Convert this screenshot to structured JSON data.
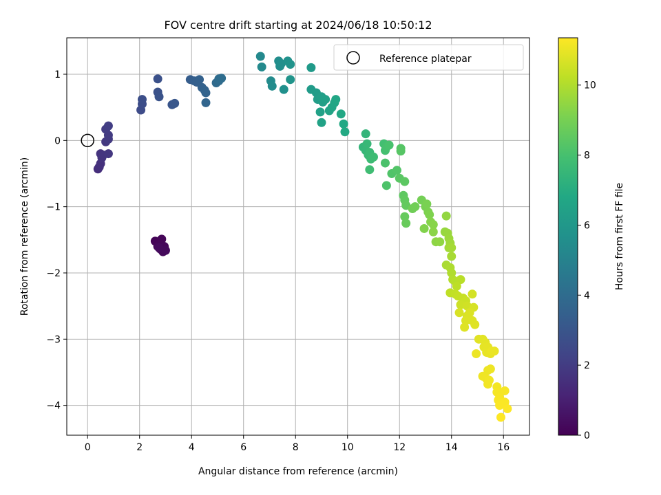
{
  "chart_data": {
    "type": "scatter",
    "title": "FOV centre drift starting at 2024/06/18 10:50:12",
    "xlabel": "Angular distance from reference (arcmin)",
    "ylabel": "Rotation from reference (arcmin)",
    "xlim": [
      -0.8,
      17.0
    ],
    "ylim": [
      -4.45,
      1.55
    ],
    "xticks": [
      0,
      2,
      4,
      6,
      8,
      10,
      12,
      14,
      16
    ],
    "yticks": [
      -4,
      -3,
      -2,
      -1,
      0,
      1
    ],
    "grid": true,
    "legend": {
      "position": "top-right",
      "entries": [
        "Reference platepar"
      ]
    },
    "reference_point": {
      "x": 0,
      "y": 0
    },
    "colorbar": {
      "label": "Hours from first FF file",
      "colormap": "viridis",
      "range": [
        0,
        11.35
      ],
      "ticks": [
        0,
        2,
        4,
        6,
        8,
        10
      ]
    },
    "points": [
      {
        "x": 2.6,
        "y": -1.52,
        "c": 0.1
      },
      {
        "x": 2.75,
        "y": -1.56,
        "c": 0.12
      },
      {
        "x": 2.85,
        "y": -1.49,
        "c": 0.15
      },
      {
        "x": 2.7,
        "y": -1.6,
        "c": 0.18
      },
      {
        "x": 2.95,
        "y": -1.6,
        "c": 0.2
      },
      {
        "x": 2.8,
        "y": -1.64,
        "c": 0.22
      },
      {
        "x": 2.9,
        "y": -1.68,
        "c": 0.25
      },
      {
        "x": 3.0,
        "y": -1.66,
        "c": 0.28
      },
      {
        "x": 2.75,
        "y": -1.62,
        "c": 0.3
      },
      {
        "x": 0.4,
        "y": -0.43,
        "c": 1.5
      },
      {
        "x": 0.45,
        "y": -0.4,
        "c": 1.55
      },
      {
        "x": 0.5,
        "y": -0.35,
        "c": 1.6
      },
      {
        "x": 0.5,
        "y": -0.2,
        "c": 1.65
      },
      {
        "x": 0.55,
        "y": -0.26,
        "c": 1.7
      },
      {
        "x": 0.6,
        "y": -0.22,
        "c": 1.75
      },
      {
        "x": 0.8,
        "y": -0.2,
        "c": 1.8
      },
      {
        "x": 0.7,
        "y": -0.02,
        "c": 1.85
      },
      {
        "x": 0.8,
        "y": 0.02,
        "c": 1.9
      },
      {
        "x": 0.8,
        "y": 0.08,
        "c": 1.95
      },
      {
        "x": 0.7,
        "y": 0.17,
        "c": 2.0
      },
      {
        "x": 0.8,
        "y": 0.22,
        "c": 2.05
      },
      {
        "x": 2.05,
        "y": 0.46,
        "c": 2.6
      },
      {
        "x": 2.1,
        "y": 0.55,
        "c": 2.65
      },
      {
        "x": 2.1,
        "y": 0.62,
        "c": 2.7
      },
      {
        "x": 2.7,
        "y": 0.93,
        "c": 2.8
      },
      {
        "x": 2.7,
        "y": 0.73,
        "c": 2.85
      },
      {
        "x": 2.75,
        "y": 0.66,
        "c": 2.9
      },
      {
        "x": 3.25,
        "y": 0.54,
        "c": 3.0
      },
      {
        "x": 3.35,
        "y": 0.56,
        "c": 3.05
      },
      {
        "x": 3.95,
        "y": 0.92,
        "c": 3.3
      },
      {
        "x": 4.1,
        "y": 0.9,
        "c": 3.4
      },
      {
        "x": 4.2,
        "y": 0.88,
        "c": 3.45
      },
      {
        "x": 4.3,
        "y": 0.92,
        "c": 3.5
      },
      {
        "x": 4.4,
        "y": 0.8,
        "c": 3.55
      },
      {
        "x": 4.5,
        "y": 0.76,
        "c": 3.6
      },
      {
        "x": 4.55,
        "y": 0.72,
        "c": 3.65
      },
      {
        "x": 4.55,
        "y": 0.57,
        "c": 3.7
      },
      {
        "x": 4.95,
        "y": 0.87,
        "c": 3.9
      },
      {
        "x": 5.05,
        "y": 0.9,
        "c": 3.95
      },
      {
        "x": 5.05,
        "y": 0.93,
        "c": 4.0
      },
      {
        "x": 5.15,
        "y": 0.94,
        "c": 4.05
      },
      {
        "x": 6.65,
        "y": 1.27,
        "c": 5.3
      },
      {
        "x": 6.7,
        "y": 1.11,
        "c": 5.35
      },
      {
        "x": 7.05,
        "y": 0.9,
        "c": 5.4
      },
      {
        "x": 7.1,
        "y": 0.82,
        "c": 5.45
      },
      {
        "x": 7.35,
        "y": 1.2,
        "c": 5.5
      },
      {
        "x": 7.4,
        "y": 1.12,
        "c": 5.55
      },
      {
        "x": 7.45,
        "y": 1.16,
        "c": 5.6
      },
      {
        "x": 7.55,
        "y": 0.77,
        "c": 5.65
      },
      {
        "x": 7.7,
        "y": 1.2,
        "c": 5.7
      },
      {
        "x": 7.8,
        "y": 1.15,
        "c": 5.75
      },
      {
        "x": 7.8,
        "y": 0.92,
        "c": 5.8
      },
      {
        "x": 8.6,
        "y": 1.1,
        "c": 6.1
      },
      {
        "x": 8.6,
        "y": 0.77,
        "c": 6.15
      },
      {
        "x": 8.8,
        "y": 0.72,
        "c": 6.2
      },
      {
        "x": 8.85,
        "y": 0.62,
        "c": 6.25
      },
      {
        "x": 9.0,
        "y": 0.66,
        "c": 6.3
      },
      {
        "x": 9.05,
        "y": 0.58,
        "c": 6.35
      },
      {
        "x": 9.15,
        "y": 0.62,
        "c": 6.4
      },
      {
        "x": 8.95,
        "y": 0.43,
        "c": 6.45
      },
      {
        "x": 9.0,
        "y": 0.27,
        "c": 6.5
      },
      {
        "x": 9.3,
        "y": 0.45,
        "c": 6.55
      },
      {
        "x": 9.4,
        "y": 0.5,
        "c": 6.6
      },
      {
        "x": 9.5,
        "y": 0.57,
        "c": 6.65
      },
      {
        "x": 9.55,
        "y": 0.62,
        "c": 6.7
      },
      {
        "x": 9.75,
        "y": 0.4,
        "c": 6.75
      },
      {
        "x": 9.85,
        "y": 0.25,
        "c": 6.8
      },
      {
        "x": 9.9,
        "y": 0.13,
        "c": 6.85
      },
      {
        "x": 10.7,
        "y": 0.1,
        "c": 7.4
      },
      {
        "x": 10.6,
        "y": -0.1,
        "c": 7.45
      },
      {
        "x": 10.7,
        "y": -0.15,
        "c": 7.5
      },
      {
        "x": 10.75,
        "y": -0.05,
        "c": 7.55
      },
      {
        "x": 10.8,
        "y": -0.22,
        "c": 7.6
      },
      {
        "x": 10.85,
        "y": -0.18,
        "c": 7.65
      },
      {
        "x": 10.9,
        "y": -0.28,
        "c": 7.7
      },
      {
        "x": 11.0,
        "y": -0.25,
        "c": 7.75
      },
      {
        "x": 10.85,
        "y": -0.44,
        "c": 7.8
      },
      {
        "x": 11.4,
        "y": -0.05,
        "c": 7.9
      },
      {
        "x": 11.45,
        "y": -0.15,
        "c": 7.95
      },
      {
        "x": 11.5,
        "y": -0.1,
        "c": 8.0
      },
      {
        "x": 11.6,
        "y": -0.07,
        "c": 8.05
      },
      {
        "x": 11.45,
        "y": -0.34,
        "c": 8.1
      },
      {
        "x": 11.5,
        "y": -0.68,
        "c": 8.15
      },
      {
        "x": 11.7,
        "y": -0.5,
        "c": 8.2
      },
      {
        "x": 11.9,
        "y": -0.45,
        "c": 8.25
      },
      {
        "x": 12.05,
        "y": -0.12,
        "c": 8.3
      },
      {
        "x": 12.05,
        "y": -0.16,
        "c": 8.35
      },
      {
        "x": 12.0,
        "y": -0.57,
        "c": 8.4
      },
      {
        "x": 12.2,
        "y": -0.62,
        "c": 8.45
      },
      {
        "x": 12.15,
        "y": -0.83,
        "c": 8.5
      },
      {
        "x": 12.2,
        "y": -0.9,
        "c": 8.55
      },
      {
        "x": 12.25,
        "y": -0.98,
        "c": 8.6
      },
      {
        "x": 12.2,
        "y": -1.15,
        "c": 8.65
      },
      {
        "x": 12.25,
        "y": -1.25,
        "c": 8.7
      },
      {
        "x": 12.5,
        "y": -1.03,
        "c": 8.85
      },
      {
        "x": 12.6,
        "y": -1.0,
        "c": 8.9
      },
      {
        "x": 12.85,
        "y": -0.9,
        "c": 8.95
      },
      {
        "x": 13.0,
        "y": -1.0,
        "c": 9.0
      },
      {
        "x": 13.05,
        "y": -0.96,
        "c": 9.05
      },
      {
        "x": 13.1,
        "y": -1.08,
        "c": 9.1
      },
      {
        "x": 13.15,
        "y": -1.12,
        "c": 9.15
      },
      {
        "x": 12.95,
        "y": -1.33,
        "c": 9.2
      },
      {
        "x": 13.2,
        "y": -1.23,
        "c": 9.25
      },
      {
        "x": 13.3,
        "y": -1.27,
        "c": 9.3
      },
      {
        "x": 13.3,
        "y": -1.38,
        "c": 9.35
      },
      {
        "x": 13.4,
        "y": -1.53,
        "c": 9.4
      },
      {
        "x": 13.55,
        "y": -1.53,
        "c": 9.45
      },
      {
        "x": 13.8,
        "y": -1.14,
        "c": 9.5
      },
      {
        "x": 13.75,
        "y": -1.38,
        "c": 9.55
      },
      {
        "x": 13.85,
        "y": -1.4,
        "c": 9.6
      },
      {
        "x": 13.9,
        "y": -1.48,
        "c": 9.65
      },
      {
        "x": 13.95,
        "y": -1.55,
        "c": 9.7
      },
      {
        "x": 13.9,
        "y": -1.62,
        "c": 9.75
      },
      {
        "x": 14.0,
        "y": -1.62,
        "c": 9.8
      },
      {
        "x": 14.0,
        "y": -1.75,
        "c": 9.85
      },
      {
        "x": 13.8,
        "y": -1.88,
        "c": 9.9
      },
      {
        "x": 13.95,
        "y": -1.92,
        "c": 9.95
      },
      {
        "x": 14.0,
        "y": -2.0,
        "c": 10.0
      },
      {
        "x": 14.05,
        "y": -2.1,
        "c": 10.05
      },
      {
        "x": 14.15,
        "y": -2.13,
        "c": 10.1
      },
      {
        "x": 14.35,
        "y": -2.1,
        "c": 10.15
      },
      {
        "x": 14.2,
        "y": -2.2,
        "c": 10.2
      },
      {
        "x": 13.95,
        "y": -2.3,
        "c": 10.25
      },
      {
        "x": 14.15,
        "y": -2.32,
        "c": 10.3
      },
      {
        "x": 14.25,
        "y": -2.35,
        "c": 10.35
      },
      {
        "x": 14.45,
        "y": -2.38,
        "c": 10.4
      },
      {
        "x": 14.55,
        "y": -2.42,
        "c": 10.45
      },
      {
        "x": 14.35,
        "y": -2.48,
        "c": 10.5
      },
      {
        "x": 14.6,
        "y": -2.5,
        "c": 10.55
      },
      {
        "x": 14.8,
        "y": -2.32,
        "c": 10.6
      },
      {
        "x": 14.85,
        "y": -2.52,
        "c": 10.65
      },
      {
        "x": 14.3,
        "y": -2.6,
        "c": 10.7
      },
      {
        "x": 14.6,
        "y": -2.65,
        "c": 10.72
      },
      {
        "x": 14.7,
        "y": -2.6,
        "c": 10.74
      },
      {
        "x": 14.55,
        "y": -2.72,
        "c": 10.76
      },
      {
        "x": 14.8,
        "y": -2.72,
        "c": 10.78
      },
      {
        "x": 14.5,
        "y": -2.82,
        "c": 10.8
      },
      {
        "x": 14.9,
        "y": -2.78,
        "c": 10.82
      },
      {
        "x": 15.05,
        "y": -3.0,
        "c": 10.85
      },
      {
        "x": 15.2,
        "y": -3.0,
        "c": 10.87
      },
      {
        "x": 15.3,
        "y": -3.05,
        "c": 10.9
      },
      {
        "x": 15.25,
        "y": -3.12,
        "c": 10.92
      },
      {
        "x": 15.4,
        "y": -3.12,
        "c": 10.94
      },
      {
        "x": 15.35,
        "y": -3.2,
        "c": 10.96
      },
      {
        "x": 15.5,
        "y": -3.22,
        "c": 10.98
      },
      {
        "x": 15.65,
        "y": -3.18,
        "c": 11.0
      },
      {
        "x": 15.55,
        "y": -3.18,
        "c": 11.02
      },
      {
        "x": 14.95,
        "y": -3.22,
        "c": 11.04
      },
      {
        "x": 15.4,
        "y": -3.47,
        "c": 11.06
      },
      {
        "x": 15.5,
        "y": -3.45,
        "c": 11.08
      },
      {
        "x": 15.2,
        "y": -3.56,
        "c": 11.1
      },
      {
        "x": 15.35,
        "y": -3.6,
        "c": 11.12
      },
      {
        "x": 15.45,
        "y": -3.62,
        "c": 11.14
      },
      {
        "x": 15.4,
        "y": -3.68,
        "c": 11.16
      },
      {
        "x": 15.75,
        "y": -3.72,
        "c": 11.18
      },
      {
        "x": 15.75,
        "y": -3.8,
        "c": 11.2
      },
      {
        "x": 16.05,
        "y": -3.78,
        "c": 11.22
      },
      {
        "x": 15.85,
        "y": -3.88,
        "c": 11.24
      },
      {
        "x": 15.8,
        "y": -3.92,
        "c": 11.26
      },
      {
        "x": 15.9,
        "y": -3.96,
        "c": 11.28
      },
      {
        "x": 16.05,
        "y": -3.95,
        "c": 11.3
      },
      {
        "x": 15.85,
        "y": -4.0,
        "c": 11.31
      },
      {
        "x": 16.15,
        "y": -4.05,
        "c": 11.33
      },
      {
        "x": 15.9,
        "y": -4.18,
        "c": 11.35
      }
    ]
  }
}
